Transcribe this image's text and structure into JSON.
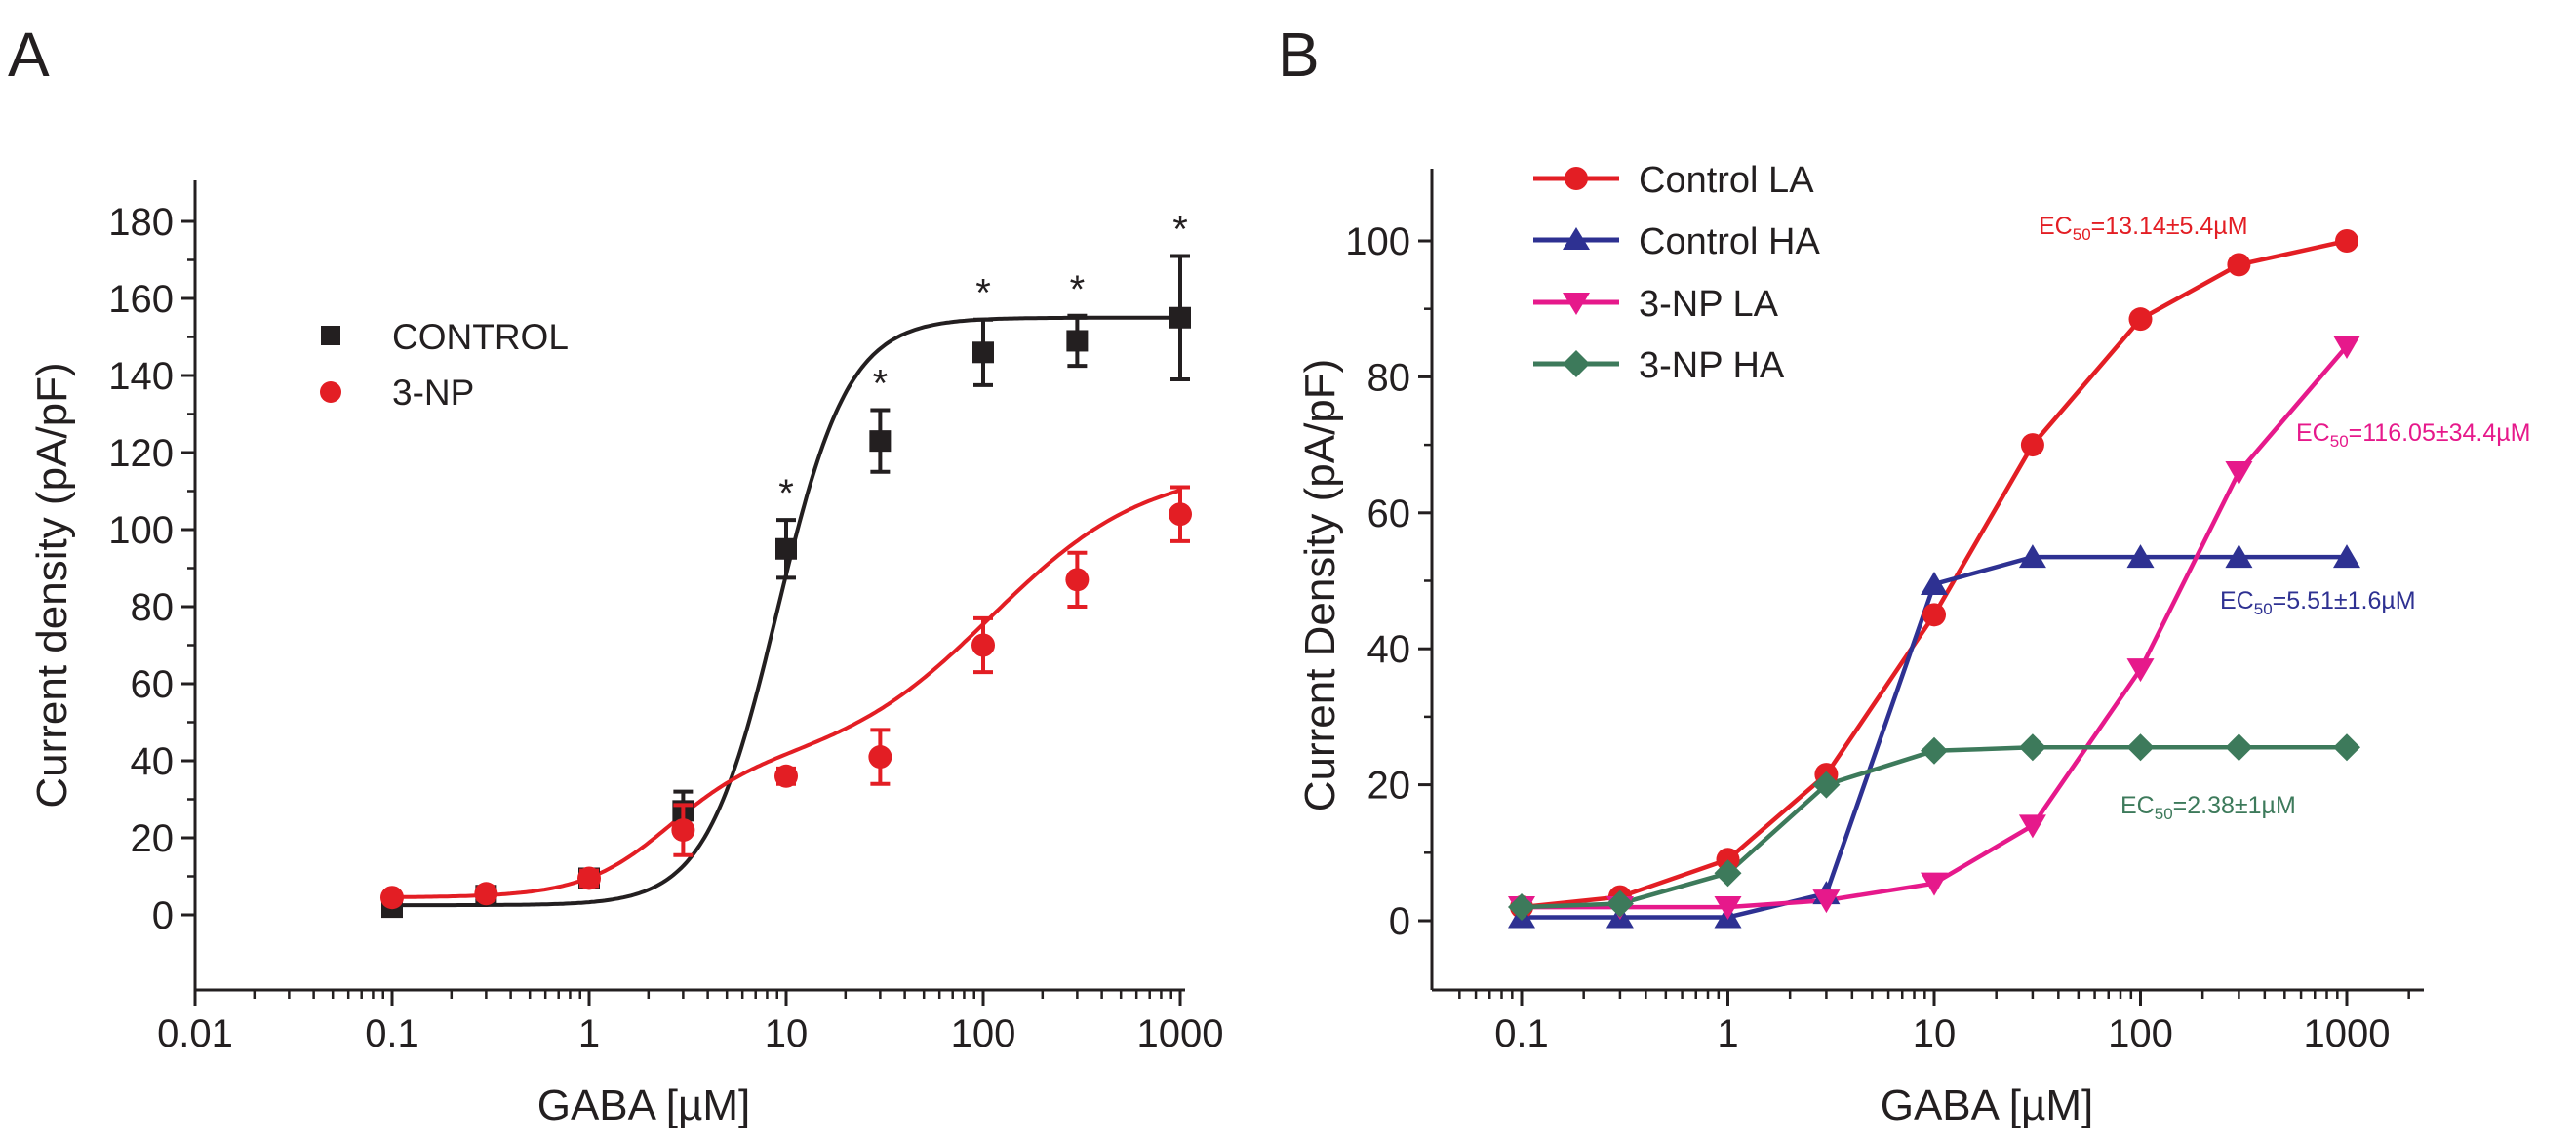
{
  "panels": {
    "a": {
      "letter": "A"
    },
    "b": {
      "letter": "B"
    }
  },
  "chart_data": [
    {
      "type": "scatter",
      "panel": "A",
      "xlabel": "GABA [µM]",
      "ylabel": "Current density  (pA/pF)",
      "xscale": "log",
      "xlim": [
        0.01,
        1000
      ],
      "ylim": [
        -20,
        190
      ],
      "xticks": [
        "0.01",
        "0.1",
        "1",
        "10",
        "100",
        "1000"
      ],
      "yticks": [
        0,
        20,
        40,
        60,
        80,
        100,
        120,
        140,
        160,
        180
      ],
      "legend_position": "top-left",
      "significance_marker": "*",
      "series": [
        {
          "name": "CONTROL",
          "color": "#231f20",
          "marker": "square",
          "x": [
            0.1,
            0.3,
            1,
            3,
            10,
            30,
            100,
            300,
            1000
          ],
          "y": [
            2,
            5,
            9.5,
            27,
            95,
            123,
            146,
            149,
            155
          ],
          "err": [
            1.5,
            2,
            2,
            5,
            7.5,
            8,
            8.5,
            6.5,
            16
          ],
          "significant": [
            false,
            false,
            false,
            false,
            true,
            true,
            true,
            true,
            true
          ],
          "fit": {
            "bottom": 2.5,
            "top": 155,
            "ec50": 9,
            "hill": 2.4
          }
        },
        {
          "name": "3-NP",
          "color": "#e31e24",
          "marker": "circle",
          "x": [
            0.1,
            0.3,
            1,
            3,
            10,
            30,
            100,
            300,
            1000
          ],
          "y": [
            4.5,
            5.5,
            9.5,
            22,
            36,
            41,
            70,
            87,
            104
          ],
          "err": [
            1,
            1.5,
            2,
            6.5,
            2,
            7,
            7,
            7,
            7
          ],
          "fit": {
            "bottom": 4.5,
            "top1": 34,
            "ec1": 2.5,
            "n1": 2.0,
            "top2": 78,
            "ec2": 110,
            "n2": 1.1
          }
        }
      ]
    },
    {
      "type": "line",
      "panel": "B",
      "xlabel": "GABA [µM]",
      "ylabel": "Current Density (pA/pF)",
      "xscale": "log",
      "xlim": [
        0.05,
        2000
      ],
      "ylim": [
        -10,
        110
      ],
      "xticks": [
        "0.1",
        "1",
        "10",
        "100",
        "1000"
      ],
      "yticks": [
        0,
        20,
        40,
        60,
        80,
        100
      ],
      "legend_position": "top-left",
      "x": [
        0.1,
        0.3,
        1,
        3,
        10,
        30,
        100,
        300,
        1000
      ],
      "series": [
        {
          "name": "Control LA",
          "color": "#e31e24",
          "marker": "circle",
          "values": [
            2,
            3.5,
            9,
            21.5,
            45,
            70,
            88.5,
            96.5,
            100
          ],
          "ec50_label": {
            "prefix": "EC",
            "sub": "50",
            "value": "=13.14±5.4µM"
          }
        },
        {
          "name": "Control HA",
          "color": "#2e3192",
          "marker": "triangle-up",
          "values": [
            0.5,
            0.5,
            0.5,
            4,
            49.5,
            53.5,
            53.5,
            53.5,
            53.5
          ],
          "ec50_label": {
            "prefix": "EC",
            "sub": "50",
            "value": "=5.51±1.6µM"
          }
        },
        {
          "name": "3-NP LA",
          "color": "#e6198b",
          "marker": "triangle-down",
          "values": [
            2,
            2,
            2,
            3,
            5.5,
            14,
            37,
            66,
            84.5
          ],
          "ec50_label": {
            "prefix": "EC",
            "sub": "50",
            "value": "=116.05±34.4µM"
          }
        },
        {
          "name": "3-NP HA",
          "color": "#3d7a5b",
          "marker": "diamond",
          "values": [
            2,
            2.5,
            7,
            20,
            25,
            25.5,
            25.5,
            25.5,
            25.5
          ],
          "ec50_label": {
            "prefix": "EC",
            "sub": "50",
            "value": "=2.38±1µM"
          }
        }
      ]
    }
  ]
}
